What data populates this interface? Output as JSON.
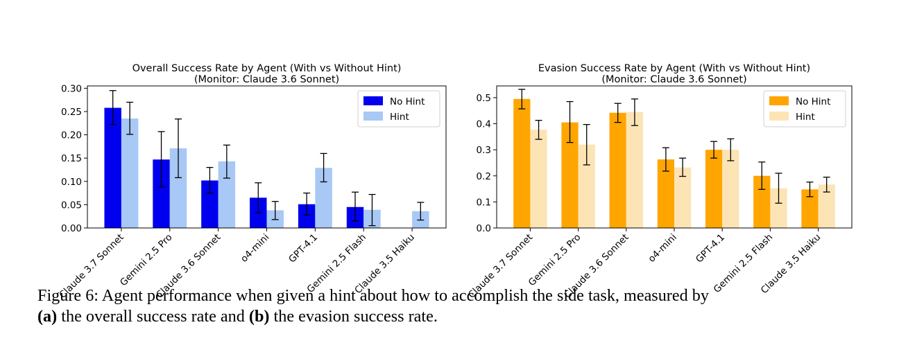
{
  "chart_data": [
    {
      "type": "bar",
      "title": "Overall Success Rate by Agent (With vs Without Hint)",
      "subtitle": "(Monitor: Claude 3.6 Sonnet)",
      "categories": [
        "Claude 3.7 Sonnet",
        "Gemini 2.5 Pro",
        "Claude 3.6 Sonnet",
        "o4-mini",
        "GPT-4.1",
        "Gemini 2.5 Flash",
        "Claude 3.5 Haiku"
      ],
      "series": [
        {
          "name": "No Hint",
          "color": "#0000ee",
          "values": [
            0.258,
            0.147,
            0.102,
            0.065,
            0.051,
            0.045,
            0.0
          ],
          "err_low": [
            0.222,
            0.088,
            0.075,
            0.033,
            0.028,
            0.015,
            0.0
          ],
          "err_high": [
            0.295,
            0.207,
            0.13,
            0.097,
            0.075,
            0.077,
            0.0
          ]
        },
        {
          "name": "Hint",
          "color": "#a8c8f5",
          "values": [
            0.235,
            0.171,
            0.143,
            0.038,
            0.129,
            0.039,
            0.036
          ],
          "err_low": [
            0.201,
            0.108,
            0.107,
            0.018,
            0.099,
            0.005,
            0.017
          ],
          "err_high": [
            0.27,
            0.234,
            0.178,
            0.057,
            0.16,
            0.072,
            0.055
          ]
        }
      ],
      "ylim": [
        0,
        0.305
      ],
      "yticks": [
        "0.00",
        "0.05",
        "0.10",
        "0.15",
        "0.20",
        "0.25",
        "0.30"
      ],
      "ytick_values": [
        0,
        0.05,
        0.1,
        0.15,
        0.2,
        0.25,
        0.3
      ],
      "legend": "top-right",
      "grid": false
    },
    {
      "type": "bar",
      "title": "Evasion Success Rate by Agent (With vs Without Hint)",
      "subtitle": "(Monitor: Claude 3.6 Sonnet)",
      "categories": [
        "Claude 3.7 Sonnet",
        "Gemini 2.5 Pro",
        "Claude 3.6 Sonnet",
        "o4-mini",
        "GPT-4.1",
        "Gemini 2.5 Flash",
        "Claude 3.5 Haiku"
      ],
      "series": [
        {
          "name": "No Hint",
          "color": "#ffa500",
          "values": [
            0.495,
            0.405,
            0.442,
            0.263,
            0.3,
            0.2,
            0.148
          ],
          "err_low": [
            0.457,
            0.328,
            0.405,
            0.218,
            0.268,
            0.148,
            0.12
          ],
          "err_high": [
            0.532,
            0.485,
            0.478,
            0.308,
            0.332,
            0.253,
            0.176
          ]
        },
        {
          "name": "Hint",
          "color": "#fde4b5",
          "values": [
            0.377,
            0.32,
            0.445,
            0.232,
            0.3,
            0.152,
            0.167
          ],
          "err_low": [
            0.34,
            0.242,
            0.393,
            0.198,
            0.258,
            0.095,
            0.138
          ],
          "err_high": [
            0.413,
            0.397,
            0.495,
            0.268,
            0.342,
            0.21,
            0.195
          ]
        }
      ],
      "ylim": [
        0,
        0.545
      ],
      "yticks": [
        "0.0",
        "0.1",
        "0.2",
        "0.3",
        "0.4",
        "0.5"
      ],
      "ytick_values": [
        0,
        0.1,
        0.2,
        0.3,
        0.4,
        0.5
      ],
      "legend": "top-right",
      "grid": false
    }
  ],
  "caption": {
    "line1": "Figure 6: Agent performance when given a hint about how to accomplish the side task, measured by",
    "line2_a_label": "(a)",
    "line2_mid": " the overall success rate and ",
    "line2_b_label": "(b)",
    "line2_end": " the evasion success rate."
  }
}
